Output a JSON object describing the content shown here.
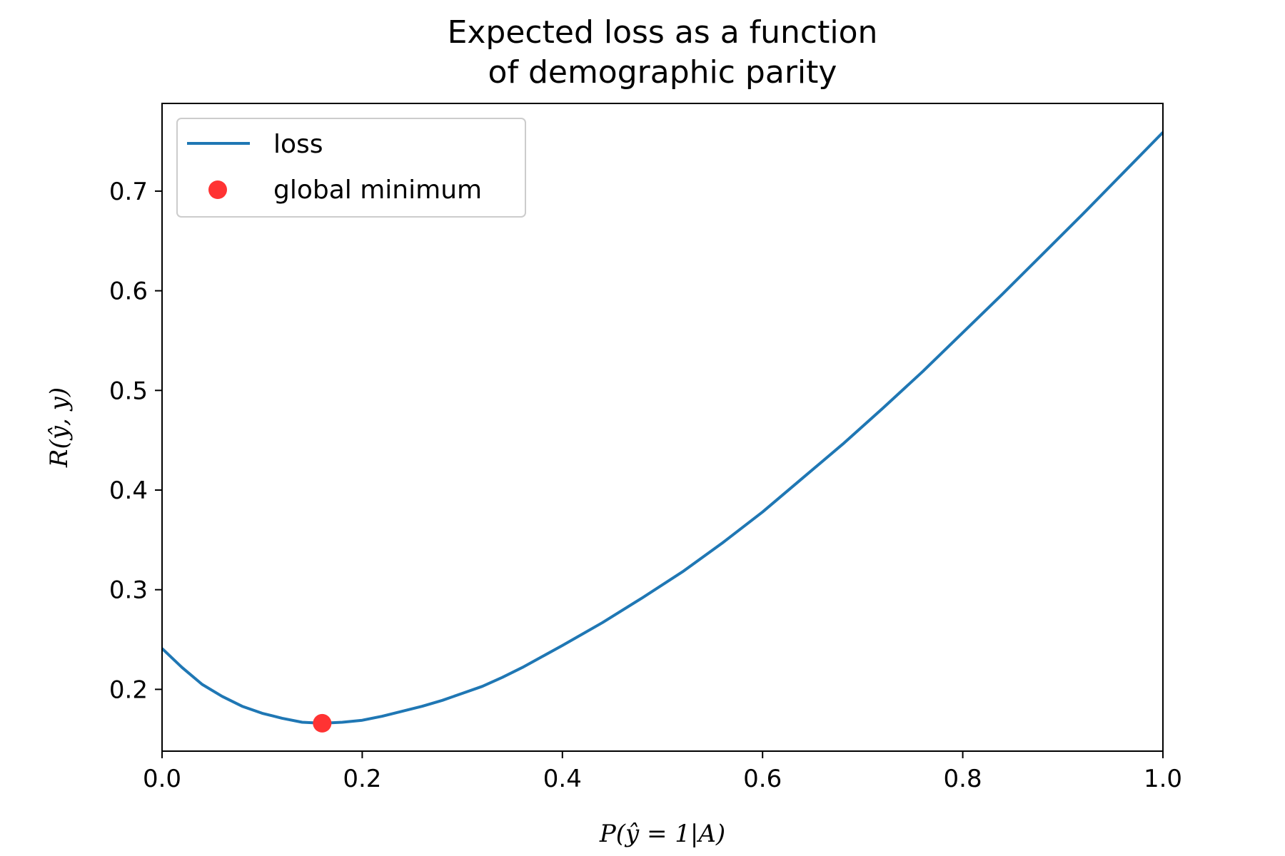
{
  "chart_data": {
    "type": "line",
    "title_lines": [
      "Expected loss as a function",
      "of demographic parity"
    ],
    "xlabel": "P(ŷ = 1|A)",
    "ylabel": "R(ŷ, y)",
    "xlim": [
      0.0,
      1.0
    ],
    "ylim": [
      0.138,
      0.788
    ],
    "xticks": [
      0.0,
      0.2,
      0.4,
      0.6,
      0.8,
      1.0
    ],
    "xtick_labels": [
      "0.0",
      "0.2",
      "0.4",
      "0.6",
      "0.8",
      "1.0"
    ],
    "yticks": [
      0.2,
      0.3,
      0.4,
      0.5,
      0.6,
      0.7
    ],
    "ytick_labels": [
      "0.2",
      "0.3",
      "0.4",
      "0.5",
      "0.6",
      "0.7"
    ],
    "grid": false,
    "legend_position": "top-left",
    "series": [
      {
        "name": "loss",
        "kind": "line",
        "color": "#1f77b4",
        "x": [
          0.0,
          0.02,
          0.04,
          0.06,
          0.08,
          0.1,
          0.12,
          0.14,
          0.16,
          0.18,
          0.2,
          0.22,
          0.24,
          0.26,
          0.28,
          0.3,
          0.32,
          0.34,
          0.36,
          0.38,
          0.4,
          0.44,
          0.48,
          0.52,
          0.56,
          0.6,
          0.64,
          0.68,
          0.72,
          0.76,
          0.8,
          0.84,
          0.88,
          0.92,
          0.96,
          1.0
        ],
        "y": [
          0.241,
          0.222,
          0.205,
          0.193,
          0.183,
          0.176,
          0.171,
          0.167,
          0.166,
          0.167,
          0.169,
          0.173,
          0.178,
          0.183,
          0.189,
          0.196,
          0.203,
          0.212,
          0.222,
          0.233,
          0.244,
          0.267,
          0.292,
          0.318,
          0.347,
          0.378,
          0.412,
          0.446,
          0.482,
          0.519,
          0.558,
          0.597,
          0.637,
          0.677,
          0.718,
          0.759
        ]
      },
      {
        "name": "global minimum",
        "kind": "scatter",
        "color": "#ff3333",
        "x": [
          0.16
        ],
        "y": [
          0.166
        ]
      }
    ]
  }
}
